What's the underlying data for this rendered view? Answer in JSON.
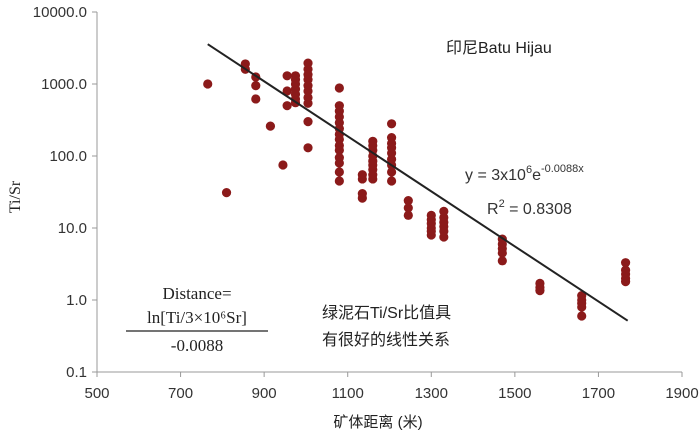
{
  "chart_data": {
    "type": "scatter",
    "title": "",
    "xlabel": "矿体距离 (米)",
    "ylabel": "Ti/Sr",
    "x_range": [
      500,
      1900
    ],
    "y_range": [
      0.1,
      10000
    ],
    "y_scale": "log",
    "grid": false,
    "x_ticks": [
      "500",
      "700",
      "900",
      "1100",
      "1300",
      "1500",
      "1700",
      "1900"
    ],
    "y_ticks": [
      "10000.0",
      "1000.0",
      "100.0",
      "10.0",
      "1.0",
      "0.1"
    ],
    "point_color": "#8b1a1a",
    "trendline_color": "#222222",
    "series": [
      {
        "points": [
          [
            765,
            1000
          ],
          [
            810,
            31
          ],
          [
            855,
            1900
          ],
          [
            855,
            1600
          ],
          [
            880,
            1250
          ],
          [
            880,
            950
          ],
          [
            880,
            620
          ],
          [
            915,
            260
          ],
          [
            945,
            75
          ],
          [
            955,
            1300
          ],
          [
            955,
            800
          ],
          [
            955,
            500
          ],
          [
            975,
            1300
          ],
          [
            975,
            1150
          ],
          [
            975,
            1000
          ],
          [
            975,
            850
          ],
          [
            975,
            720
          ],
          [
            975,
            620
          ],
          [
            975,
            550
          ],
          [
            1005,
            1950
          ],
          [
            1005,
            1600
          ],
          [
            1005,
            1350
          ],
          [
            1005,
            1150
          ],
          [
            1005,
            950
          ],
          [
            1005,
            800
          ],
          [
            1005,
            650
          ],
          [
            1005,
            540
          ],
          [
            1005,
            300
          ],
          [
            1005,
            130
          ],
          [
            1080,
            880
          ],
          [
            1080,
            500
          ],
          [
            1080,
            420
          ],
          [
            1080,
            350
          ],
          [
            1080,
            290
          ],
          [
            1080,
            240
          ],
          [
            1080,
            200
          ],
          [
            1080,
            170
          ],
          [
            1080,
            140
          ],
          [
            1080,
            120
          ],
          [
            1080,
            95
          ],
          [
            1080,
            80
          ],
          [
            1080,
            60
          ],
          [
            1080,
            45
          ],
          [
            1135,
            55
          ],
          [
            1135,
            48
          ],
          [
            1135,
            30
          ],
          [
            1135,
            26
          ],
          [
            1160,
            160
          ],
          [
            1160,
            140
          ],
          [
            1160,
            120
          ],
          [
            1160,
            100
          ],
          [
            1160,
            85
          ],
          [
            1160,
            75
          ],
          [
            1160,
            65
          ],
          [
            1160,
            55
          ],
          [
            1160,
            48
          ],
          [
            1205,
            280
          ],
          [
            1205,
            180
          ],
          [
            1205,
            150
          ],
          [
            1205,
            130
          ],
          [
            1205,
            110
          ],
          [
            1205,
            90
          ],
          [
            1205,
            75
          ],
          [
            1205,
            60
          ],
          [
            1205,
            45
          ],
          [
            1245,
            24
          ],
          [
            1245,
            19
          ],
          [
            1245,
            15
          ],
          [
            1300,
            15
          ],
          [
            1300,
            13
          ],
          [
            1300,
            11.5
          ],
          [
            1300,
            10
          ],
          [
            1300,
            9
          ],
          [
            1300,
            8
          ],
          [
            1330,
            17
          ],
          [
            1330,
            14
          ],
          [
            1330,
            12
          ],
          [
            1330,
            10.5
          ],
          [
            1330,
            9
          ],
          [
            1330,
            7.5
          ],
          [
            1470,
            7
          ],
          [
            1470,
            6
          ],
          [
            1470,
            5.2
          ],
          [
            1470,
            4.5
          ],
          [
            1470,
            3.5
          ],
          [
            1560,
            1.7
          ],
          [
            1560,
            1.5
          ],
          [
            1560,
            1.35
          ],
          [
            1660,
            1.15
          ],
          [
            1660,
            1.0
          ],
          [
            1660,
            0.9
          ],
          [
            1660,
            0.8
          ],
          [
            1660,
            0.6
          ],
          [
            1765,
            3.3
          ],
          [
            1765,
            2.6
          ],
          [
            1765,
            2.3
          ],
          [
            1765,
            2.0
          ],
          [
            1765,
            1.8
          ]
        ]
      }
    ],
    "trendline": {
      "type": "exponential",
      "a": 3000000,
      "b": -0.0088,
      "x_from": 765,
      "x_to": 1770,
      "equation_base": "y = 3x10",
      "equation_exp_1": "6",
      "equation_mid": "e",
      "equation_exp_2": "-0.0088x",
      "r2_label": "R",
      "r2_sup": "2",
      "r2_value": " = 0.8308"
    },
    "annotations": {
      "location": "印尼Batu Hijau",
      "formula_line1": "Distance=",
      "formula_line2": "ln[Ti/3×10⁶Sr]",
      "formula_line3": "-0.0088",
      "note_line1": "绿泥石Ti/Sr比值具",
      "note_line2": "有很好的线性关系"
    }
  }
}
